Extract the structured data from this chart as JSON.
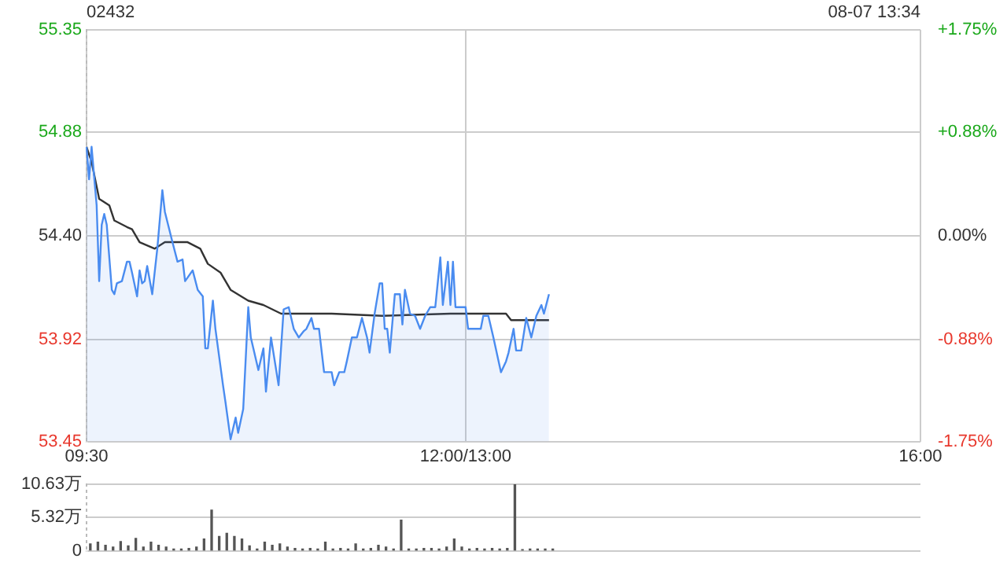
{
  "chart_data": [
    {
      "type": "line",
      "title": "02432",
      "annotations": [
        "08-07 13:34"
      ],
      "categories": [
        "09:30",
        null,
        null,
        null,
        null,
        null,
        null,
        null,
        null,
        null,
        null,
        null,
        null,
        null,
        null,
        null,
        null,
        null,
        null,
        null,
        null,
        null,
        null,
        null,
        null,
        null,
        null,
        null,
        null,
        null,
        null,
        null,
        null,
        null,
        null,
        null,
        null,
        null,
        null,
        null,
        null,
        null,
        null,
        null,
        null,
        null,
        null,
        null,
        null,
        null,
        null,
        null,
        null,
        null,
        null,
        null,
        null,
        null,
        null,
        null,
        null,
        null,
        null,
        null,
        null,
        null,
        null,
        null,
        null,
        null,
        null,
        null,
        null,
        null,
        null,
        null,
        null,
        null,
        null,
        null,
        null,
        null,
        null,
        null,
        null,
        null,
        null,
        null,
        null,
        null,
        null,
        null,
        null,
        null,
        null,
        null,
        null,
        null,
        null,
        null,
        null,
        null,
        null,
        null,
        null,
        null,
        null,
        null,
        null,
        null,
        null,
        null,
        null,
        null,
        null,
        null,
        null,
        null,
        null,
        null,
        null,
        null,
        null,
        null,
        null,
        null,
        null,
        null,
        null,
        null,
        null,
        null,
        null,
        null,
        null,
        null,
        null,
        null,
        null,
        null,
        null,
        null,
        null,
        null,
        null,
        null,
        null,
        null,
        null,
        null,
        "12:00/13:00",
        null,
        null,
        null,
        null,
        null,
        null,
        null,
        null,
        null,
        null,
        null,
        null,
        null,
        null,
        null,
        null,
        null,
        null,
        null,
        null,
        null,
        null,
        null,
        null,
        null,
        null,
        null,
        null,
        null,
        null,
        null,
        null,
        null,
        null,
        null,
        null,
        null,
        null,
        null,
        null,
        null,
        null,
        null,
        null,
        null,
        null,
        null,
        null,
        null,
        null,
        null,
        null,
        null,
        null,
        null,
        null,
        null,
        null,
        null,
        null,
        null,
        null,
        null,
        null,
        null,
        null,
        null,
        null,
        null,
        null,
        null,
        null,
        null,
        null,
        null,
        null,
        null,
        null,
        null,
        null,
        null,
        null,
        null,
        null,
        null,
        null,
        null,
        null,
        null,
        null,
        null,
        null,
        null,
        null,
        null,
        null,
        null,
        null,
        null,
        null,
        null,
        null,
        null,
        null,
        null,
        null,
        null,
        null,
        null,
        null,
        null,
        null,
        null,
        null,
        null,
        null,
        null,
        null,
        null,
        null,
        null,
        null,
        null,
        null,
        null,
        null,
        null,
        null,
        null,
        null,
        null,
        null,
        null,
        null,
        null,
        null,
        null,
        null,
        null,
        null,
        null,
        null,
        null,
        null,
        null,
        null,
        null,
        null,
        null,
        null,
        null,
        null,
        null,
        null,
        null,
        null,
        null,
        null,
        null,
        null,
        null,
        null,
        null,
        null,
        null,
        null,
        null,
        null,
        null,
        null,
        null,
        null,
        null,
        null,
        null,
        null,
        null,
        null,
        null,
        "16:00"
      ],
      "series": [
        {
          "type": "area",
          "color": "#4a8cf0",
          "values": [
            54.81,
            54.66,
            54.81,
            null,
            54.54,
            54.19,
            54.45,
            54.5,
            54.45,
            null,
            54.15,
            54.13,
            54.18,
            null,
            54.19,
            null,
            54.28,
            54.28,
            54.23,
            null,
            54.12,
            54.24,
            54.18,
            54.19,
            54.26,
            null,
            54.13,
            null,
            54.34,
            null,
            54.61,
            54.51,
            null,
            null,
            54.37,
            null,
            54.28,
            null,
            54.29,
            54.19,
            null,
            null,
            54.24,
            null,
            54.15,
            null,
            54.12,
            53.88,
            53.88,
            null,
            54.1,
            53.97,
            null,
            null,
            53.71,
            53.63,
            null,
            53.46,
            null,
            53.56,
            53.49,
            null,
            53.6,
            null,
            54.07,
            53.93,
            53.88,
            null,
            53.78,
            null,
            53.88,
            53.68,
            null,
            53.93,
            null,
            null,
            53.71,
            null,
            54.06,
            null,
            54.07,
            null,
            53.97,
            null,
            53.93,
            null,
            53.96,
            53.97,
            null,
            54.02,
            53.97,
            null,
            53.97,
            null,
            53.77,
            null,
            null,
            53.77,
            53.71,
            null,
            53.77,
            null,
            53.77,
            53.82,
            null,
            53.93,
            null,
            53.93,
            null,
            54.02,
            null,
            53.93,
            53.86,
            null,
            54.04,
            null,
            54.18,
            54.18,
            53.97,
            53.97,
            53.86,
            null,
            54.13,
            null,
            54.13,
            53.99,
            54.15,
            null,
            54.04,
            null,
            54.03,
            null,
            53.97,
            null,
            54.03,
            null,
            54.07,
            null,
            54.07,
            null,
            54.3,
            54.08,
            null,
            54.28,
            54.08,
            54.28,
            54.07,
            null,
            null,
            null,
            54.07,
            53.97,
            null,
            null,
            null,
            null,
            53.97,
            54.03,
            null,
            54.03,
            null,
            53.93,
            null,
            null,
            53.77,
            null,
            53.82,
            53.86,
            null,
            53.97,
            53.87,
            null,
            53.87,
            null,
            54.02,
            null,
            53.93,
            null,
            54.03,
            null,
            54.08,
            54.04,
            null,
            54.13,
            null,
            null,
            null,
            null,
            null,
            null,
            null,
            null,
            null,
            null,
            null,
            null,
            null,
            null,
            null,
            null,
            null,
            null,
            null,
            null,
            null,
            null,
            null,
            null,
            null,
            null,
            null,
            null,
            null,
            null,
            null,
            null,
            null,
            null,
            null,
            null,
            null,
            null,
            null,
            null,
            null,
            null,
            null,
            null,
            null,
            null,
            null,
            null,
            null,
            null,
            null,
            null,
            null,
            null,
            null,
            null,
            null,
            null,
            null,
            null,
            null,
            null,
            null,
            null,
            null,
            null,
            null,
            null,
            null,
            null,
            null,
            null,
            null,
            null,
            null,
            null,
            null,
            null,
            null,
            null,
            null,
            null,
            null,
            null,
            null,
            null,
            null,
            null,
            null,
            null,
            null,
            null,
            null,
            null,
            null,
            null,
            null,
            null,
            null,
            null,
            null,
            null,
            null,
            null,
            null,
            null,
            null,
            null,
            null,
            null,
            null,
            null,
            null,
            null,
            null,
            null,
            null,
            null,
            null,
            null,
            null,
            null,
            null,
            null,
            null,
            null,
            null,
            null,
            null,
            null,
            null,
            null,
            null,
            null,
            null,
            null,
            null,
            null,
            null,
            null,
            null,
            null,
            null,
            null,
            null,
            null,
            null
          ]
        },
        {
          "type": "line",
          "color": "#333333",
          "values": [
            54.81,
            null,
            54.74,
            null,
            null,
            54.57,
            null,
            null,
            null,
            54.54,
            null,
            54.47,
            null,
            null,
            null,
            null,
            54.44,
            null,
            54.43,
            null,
            null,
            54.37,
            null,
            null,
            null,
            null,
            null,
            54.34,
            null,
            null,
            null,
            54.37,
            null,
            null,
            null,
            null,
            null,
            null,
            null,
            null,
            54.37,
            null,
            null,
            null,
            null,
            54.34,
            null,
            null,
            54.27,
            null,
            null,
            null,
            null,
            54.23,
            null,
            null,
            null,
            54.15,
            null,
            null,
            null,
            null,
            null,
            null,
            54.1,
            null,
            null,
            null,
            null,
            null,
            54.08,
            null,
            null,
            null,
            null,
            null,
            null,
            54.04,
            null,
            null,
            null,
            null,
            null,
            null,
            null,
            null,
            null,
            null,
            null,
            null,
            null,
            null,
            null,
            null,
            null,
            null,
            null,
            54.04,
            null,
            null,
            null,
            null,
            null,
            null,
            null,
            null,
            null,
            null,
            null,
            null,
            null,
            null,
            null,
            null,
            null,
            null,
            null,
            54.03,
            null,
            null,
            null,
            null,
            null,
            null,
            null,
            null,
            null,
            null,
            null,
            null,
            null,
            null,
            null,
            null,
            null,
            null,
            null,
            null,
            null,
            null,
            null,
            null,
            null,
            null,
            54.04,
            null,
            null,
            null,
            null,
            null,
            null,
            null,
            null,
            null,
            null,
            null,
            null,
            null,
            null,
            null,
            null,
            null,
            null,
            null,
            null,
            null,
            54.04,
            null,
            54.01,
            null,
            null,
            null,
            null,
            null,
            null,
            null,
            null,
            null,
            null,
            null,
            null,
            null,
            null,
            54.01,
            null,
            null,
            null,
            null,
            null,
            null,
            null,
            null,
            null,
            null,
            null,
            null,
            null,
            null,
            null,
            null,
            null,
            null,
            null,
            null,
            null,
            null,
            null,
            null,
            null,
            null,
            null,
            null,
            null,
            null,
            null,
            null,
            null,
            null,
            null,
            null,
            null,
            null,
            null,
            null,
            null,
            null,
            null,
            null,
            null,
            null,
            null,
            null,
            null,
            null,
            null,
            null,
            null,
            null,
            null,
            null,
            null,
            null,
            null,
            null,
            null,
            null,
            null,
            null,
            null,
            null,
            null,
            null,
            null,
            null,
            null,
            null,
            null,
            null,
            null,
            null,
            null,
            null,
            null,
            null,
            null,
            null,
            null,
            null,
            null,
            null,
            null,
            null,
            null,
            null,
            null,
            null,
            null,
            null,
            null,
            null,
            null,
            null,
            null,
            null,
            null,
            null,
            null,
            null,
            null,
            null,
            null,
            null,
            null,
            null,
            null,
            null,
            null,
            null,
            null,
            null,
            null,
            null,
            null,
            null,
            null,
            null,
            null,
            null,
            null,
            null,
            null,
            null,
            null,
            null,
            null,
            null,
            null,
            null,
            null,
            null,
            null,
            null,
            null,
            null,
            null,
            null,
            null,
            null,
            null,
            null,
            null
          ]
        }
      ],
      "ylim": [
        53.45,
        55.35
      ],
      "yticks": [
        {
          "value": 53.45,
          "label": "53.45"
        },
        {
          "value": 53.92,
          "label": "53.92"
        },
        {
          "value": 54.4,
          "label": "54.40"
        },
        {
          "value": 54.88,
          "label": "54.88"
        },
        {
          "value": 55.35,
          "label": "55.35"
        }
      ],
      "y2lim": [
        -1.75,
        1.75
      ],
      "y2ticks": [
        {
          "value": -1.75,
          "label": "-1.75%"
        },
        {
          "value": -0.88,
          "label": "-0.88%"
        },
        {
          "value": 0,
          "label": "0.00%"
        },
        {
          "value": 0.88,
          "label": "+0.88%"
        },
        {
          "value": 1.75,
          "label": "+1.75%"
        }
      ],
      "grid": true,
      "legend": false,
      "marker": "none"
    },
    {
      "type": "bar",
      "color": "#555555",
      "categories": [
        null,
        null,
        null,
        null,
        null,
        null,
        null,
        null,
        null,
        null,
        null,
        null,
        null,
        null,
        null,
        null,
        null,
        null,
        null,
        null,
        null,
        null,
        null,
        null,
        null,
        null,
        null,
        null,
        null,
        null,
        null,
        null,
        null,
        null,
        null,
        null,
        null,
        null,
        null,
        null,
        null,
        null,
        null,
        null,
        null,
        null,
        null,
        null,
        null,
        null,
        null,
        null,
        null,
        null,
        null,
        null,
        null,
        null,
        null,
        null,
        null,
        null,
        null,
        null,
        null,
        null,
        null,
        null,
        null,
        null,
        null,
        null,
        null,
        null,
        null,
        null,
        null,
        null,
        null,
        null,
        null,
        null,
        null,
        null,
        null,
        null,
        null,
        null,
        null,
        null,
        null,
        null,
        null,
        null,
        null,
        null,
        null,
        null,
        null,
        null,
        null,
        null,
        null,
        null,
        null,
        null,
        null,
        null,
        null,
        null
      ],
      "values": [
        1.1,
        1.4,
        0.9,
        0.6,
        1.5,
        0.8,
        2.0,
        0.6,
        1.4,
        0.9,
        0.6,
        0.3,
        0.3,
        0.4,
        0.6,
        1.9,
        6.5,
        2.3,
        2.8,
        2.3,
        1.9,
        0.8,
        0.3,
        1.4,
        0.9,
        1.1,
        0.6,
        0.4,
        0.3,
        0.4,
        0.3,
        1.4,
        0.3,
        0.4,
        0.3,
        1.1,
        0.3,
        0.4,
        0.9,
        0.6,
        0.3,
        4.9,
        0.3,
        0.3,
        0.4,
        0.4,
        0.3,
        0.6,
        1.9,
        0.6,
        0.3,
        0.4,
        0.3,
        0.4,
        0.3,
        0.4,
        10.6,
        0.2,
        0.3,
        0.3,
        0.3,
        0.3,
        null,
        null,
        null,
        null,
        null,
        null,
        null,
        null,
        null,
        null,
        null,
        null,
        null,
        null,
        null,
        null,
        null,
        null,
        null,
        null,
        null,
        null,
        null,
        null,
        null,
        null,
        null,
        null,
        null,
        null,
        null,
        null,
        null,
        null,
        null,
        null,
        null,
        null,
        null,
        null,
        null,
        null,
        null,
        null,
        null,
        null,
        null,
        null
      ],
      "ylim": [
        0,
        10.63
      ],
      "yticks": [
        0,
        {
          "value": 5.32,
          "label": "5.32万"
        },
        {
          "value": 10.63,
          "label": "10.63万"
        }
      ],
      "grid": "y",
      "tick_labels": "y"
    }
  ]
}
